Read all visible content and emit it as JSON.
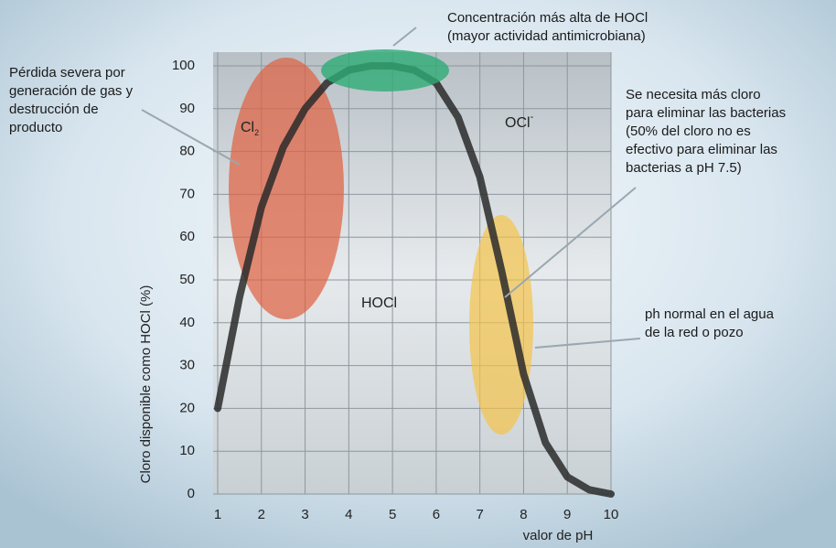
{
  "chart_data": {
    "type": "line",
    "x_label": "valor de pH",
    "y_label": "Cloro disponible como HOCl (%)",
    "x": [
      1,
      1.5,
      2,
      2.5,
      3,
      3.5,
      4,
      4.5,
      5,
      5.5,
      6,
      6.5,
      7,
      7.5,
      8,
      8.5,
      9,
      9.5,
      10
    ],
    "series": [
      {
        "color": "#2a2a2a",
        "values": [
          20,
          46,
          67,
          81,
          90,
          96,
          99,
          100,
          100,
          99,
          96,
          88,
          74,
          52,
          28,
          12,
          4,
          1,
          0
        ]
      }
    ],
    "xlim": [
      1,
      10
    ],
    "ylim": [
      0,
      100
    ],
    "xticks": [
      1,
      2,
      3,
      4,
      5,
      6,
      7,
      8,
      9,
      10
    ],
    "yticks": [
      0,
      10,
      20,
      30,
      40,
      50,
      60,
      70,
      80,
      90,
      100
    ],
    "grid": true,
    "region_labels": [
      {
        "text": "Cl",
        "subscript": "2"
      },
      {
        "text": "OCl",
        "superscript": "-"
      },
      {
        "text": "HOCl"
      }
    ],
    "annotations": [
      {
        "lines": [
          "Concentración más alta de HOCl",
          "(mayor actividad antimicrobiana)"
        ]
      },
      {
        "lines": [
          "Pérdida severa por",
          "generación de gas y",
          "destrucción de",
          "producto"
        ]
      },
      {
        "lines": [
          "Se necesita más cloro",
          "para eliminar las bacterias",
          "(50% del cloro no es",
          "efectivo para eliminar las",
          "bacterias a pH 7.5)"
        ]
      },
      {
        "lines": [
          "ph normal en el agua",
          "de la red o pozo"
        ]
      }
    ]
  }
}
